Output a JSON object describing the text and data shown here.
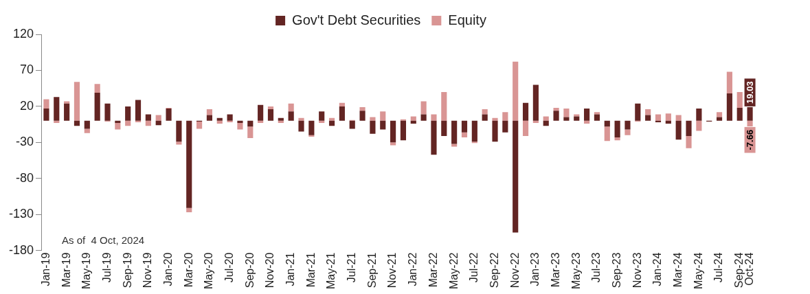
{
  "chart_data": {
    "type": "bar",
    "stacked": true,
    "categories": [
      "Jan-19",
      null,
      "Mar-19",
      null,
      "May-19",
      null,
      "Jul-19",
      null,
      "Sep-19",
      null,
      "Nov-19",
      null,
      "Jan-20",
      null,
      "Mar-20",
      null,
      "May-20",
      null,
      "Jul-20",
      null,
      "Sep-20",
      null,
      "Nov-20",
      null,
      "Jan-21",
      null,
      "Mar-21",
      null,
      "May-21",
      null,
      "Jul-21",
      null,
      "Sep-21",
      null,
      "Nov-21",
      null,
      "Jan-22",
      null,
      "Mar-22",
      null,
      "May-22",
      null,
      "Jul-22",
      null,
      "Sep-22",
      null,
      "Nov-22",
      null,
      "Jan-23",
      null,
      "Mar-23",
      null,
      "May-23",
      null,
      "Jul-23",
      null,
      "Sep-23",
      null,
      "Nov-23",
      null,
      "Jan-24",
      null,
      "Mar-24",
      null,
      "May-24",
      null,
      "Jul-24",
      null,
      "Sep-24",
      "Oct-24"
    ],
    "series": [
      {
        "name": "Gov't Debt Securities",
        "color": "#632523",
        "values": [
          17,
          33,
          24,
          -7,
          -11,
          39,
          24,
          -3,
          20,
          29,
          9,
          -6,
          17,
          -29,
          -121,
          -1,
          8,
          4,
          9,
          -3,
          -8,
          22,
          16,
          4,
          13,
          -15,
          -20,
          13,
          -7,
          20,
          -11,
          14,
          -18,
          -12,
          -30,
          -27,
          -4,
          9,
          -47,
          -21,
          -32,
          -16,
          -29,
          9,
          -29,
          -16,
          -155,
          25,
          50,
          -7,
          14,
          5,
          6,
          17,
          9,
          -8,
          -23,
          -12,
          24,
          8,
          -2,
          -4,
          -26,
          -21,
          17,
          -1,
          5,
          38,
          18,
          19.03
        ],
        "value_labels": [
          null,
          null,
          null,
          null,
          null,
          null,
          null,
          null,
          null,
          null,
          null,
          null,
          null,
          null,
          null,
          null,
          null,
          null,
          null,
          null,
          null,
          null,
          null,
          null,
          null,
          null,
          null,
          null,
          null,
          null,
          null,
          null,
          null,
          null,
          null,
          null,
          null,
          null,
          null,
          null,
          null,
          null,
          null,
          null,
          null,
          null,
          null,
          null,
          null,
          null,
          null,
          null,
          null,
          null,
          null,
          null,
          null,
          null,
          null,
          null,
          null,
          null,
          null,
          null,
          null,
          null,
          null,
          null,
          null,
          "19.03"
        ]
      },
      {
        "name": "Equity",
        "color": "#d99594",
        "values": [
          13,
          -3,
          3,
          54,
          -6,
          12,
          -1,
          -9,
          -7,
          -2,
          -7,
          8,
          1,
          -4,
          -6,
          -10,
          8,
          -4,
          -2,
          -9,
          -16,
          -3,
          4,
          -3,
          11,
          4,
          -2,
          -3,
          4,
          5,
          1,
          5,
          5,
          13,
          -4,
          2,
          6,
          18,
          9,
          40,
          -4,
          -7,
          -2,
          7,
          4,
          12,
          82,
          -21,
          -3,
          6,
          4,
          12,
          3,
          -4,
          3,
          -20,
          -4,
          -8,
          -1,
          8,
          9,
          10,
          8,
          -17,
          -14,
          0,
          7,
          30,
          22,
          -7.66
        ],
        "value_labels": [
          null,
          null,
          null,
          null,
          null,
          null,
          null,
          null,
          null,
          null,
          null,
          null,
          null,
          null,
          null,
          null,
          null,
          null,
          null,
          null,
          null,
          null,
          null,
          null,
          null,
          null,
          null,
          null,
          null,
          null,
          null,
          null,
          null,
          null,
          null,
          null,
          null,
          null,
          null,
          null,
          null,
          null,
          null,
          null,
          null,
          null,
          null,
          null,
          null,
          null,
          null,
          null,
          null,
          null,
          null,
          null,
          null,
          null,
          null,
          null,
          null,
          null,
          null,
          null,
          null,
          null,
          null,
          null,
          null,
          "-7.66"
        ]
      }
    ],
    "ylim": [
      -180,
      120
    ],
    "yticks": [
      120,
      70,
      20,
      -30,
      -80,
      -130,
      -180
    ],
    "grid": false,
    "legend": "top",
    "annotations": [
      "As of  4 Oct, 2024"
    ]
  }
}
